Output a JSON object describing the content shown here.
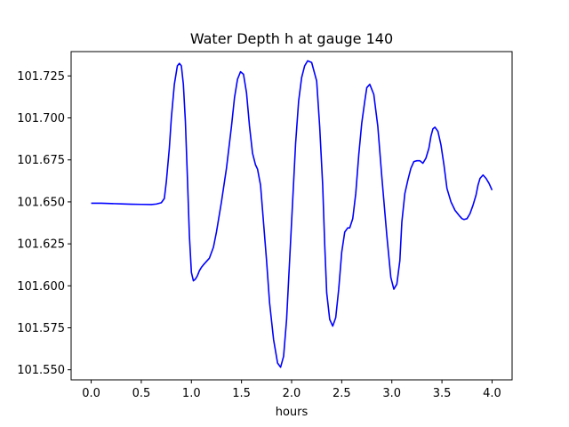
{
  "chart_data": {
    "type": "line",
    "title": "Water Depth h at gauge 140",
    "xlabel": "hours",
    "ylabel": "",
    "xlim": [
      -0.2,
      4.2
    ],
    "ylim": [
      101.544,
      101.7395
    ],
    "xticks": [
      0.0,
      0.5,
      1.0,
      1.5,
      2.0,
      2.5,
      3.0,
      3.5,
      4.0
    ],
    "xtick_labels": [
      "0.0",
      "0.5",
      "1.0",
      "1.5",
      "2.0",
      "2.5",
      "3.0",
      "3.5",
      "4.0"
    ],
    "yticks": [
      101.55,
      101.575,
      101.6,
      101.625,
      101.65,
      101.675,
      101.7,
      101.725
    ],
    "ytick_labels": [
      "101.550",
      "101.575",
      "101.600",
      "101.625",
      "101.650",
      "101.675",
      "101.700",
      "101.725"
    ],
    "grid": false,
    "series": [
      {
        "color": "#0000ff",
        "x": [
          0.0,
          0.1,
          0.2,
          0.3,
          0.4,
          0.5,
          0.6,
          0.65,
          0.7,
          0.73,
          0.75,
          0.78,
          0.8,
          0.83,
          0.86,
          0.88,
          0.9,
          0.92,
          0.94,
          0.96,
          0.98,
          1.0,
          1.02,
          1.04,
          1.06,
          1.08,
          1.1,
          1.12,
          1.15,
          1.18,
          1.22,
          1.25,
          1.3,
          1.35,
          1.4,
          1.43,
          1.46,
          1.49,
          1.52,
          1.55,
          1.58,
          1.61,
          1.64,
          1.66,
          1.69,
          1.71,
          1.75,
          1.78,
          1.82,
          1.86,
          1.89,
          1.92,
          1.95,
          1.98,
          2.01,
          2.04,
          2.07,
          2.1,
          2.13,
          2.16,
          2.2,
          2.25,
          2.28,
          2.31,
          2.33,
          2.35,
          2.38,
          2.41,
          2.44,
          2.47,
          2.5,
          2.53,
          2.56,
          2.58,
          2.61,
          2.64,
          2.67,
          2.7,
          2.73,
          2.75,
          2.78,
          2.82,
          2.86,
          2.9,
          2.95,
          2.99,
          3.02,
          3.05,
          3.08,
          3.1,
          3.13,
          3.16,
          3.19,
          3.22,
          3.25,
          3.28,
          3.31,
          3.34,
          3.37,
          3.39,
          3.41,
          3.43,
          3.46,
          3.49,
          3.52,
          3.55,
          3.59,
          3.63,
          3.67,
          3.7,
          3.72,
          3.75,
          3.78,
          3.81,
          3.84,
          3.86,
          3.88,
          3.91,
          3.94,
          3.97,
          4.0
        ],
        "y": [
          101.6492,
          101.6492,
          101.649,
          101.6488,
          101.6486,
          101.6485,
          101.6484,
          101.6487,
          101.6495,
          101.652,
          101.662,
          101.682,
          101.7,
          101.72,
          101.731,
          101.7325,
          101.731,
          101.72,
          101.698,
          101.665,
          101.63,
          101.608,
          101.603,
          101.604,
          101.606,
          101.609,
          101.611,
          101.6125,
          101.6145,
          101.6165,
          101.623,
          101.632,
          101.65,
          101.67,
          101.695,
          101.712,
          101.723,
          101.7275,
          101.726,
          101.715,
          101.695,
          101.679,
          101.672,
          101.6695,
          101.66,
          101.645,
          101.615,
          101.59,
          101.568,
          101.554,
          101.5515,
          101.558,
          101.58,
          101.615,
          101.65,
          101.685,
          101.71,
          101.724,
          101.731,
          101.734,
          101.733,
          101.722,
          101.695,
          101.66,
          101.625,
          101.596,
          101.58,
          101.576,
          101.581,
          101.598,
          101.62,
          101.632,
          101.6345,
          101.6345,
          101.64,
          101.655,
          101.678,
          101.697,
          101.71,
          101.718,
          101.72,
          101.714,
          101.695,
          101.665,
          101.63,
          101.605,
          101.598,
          101.601,
          101.615,
          101.638,
          101.655,
          101.663,
          101.67,
          101.674,
          101.6745,
          101.6745,
          101.673,
          101.676,
          101.682,
          101.689,
          101.6935,
          101.6945,
          101.692,
          101.684,
          101.672,
          101.658,
          101.65,
          101.645,
          101.642,
          101.64,
          101.6395,
          101.64,
          101.643,
          101.648,
          101.654,
          101.66,
          101.664,
          101.666,
          101.664,
          101.661,
          101.657
        ]
      }
    ]
  }
}
